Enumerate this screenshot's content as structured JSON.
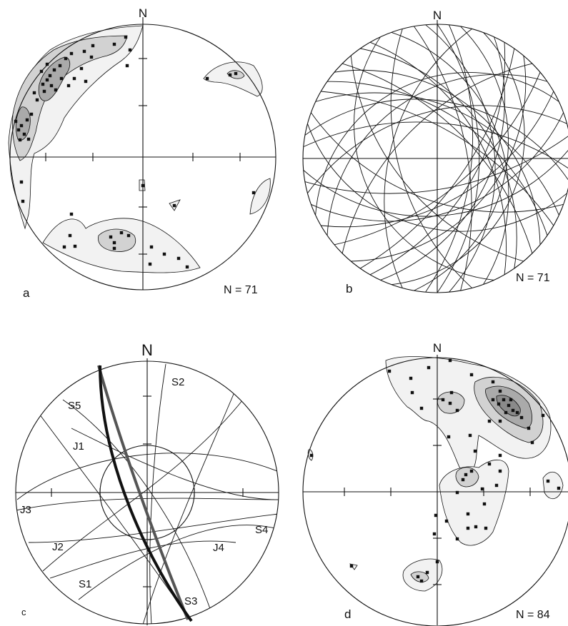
{
  "panels": [
    {
      "id": "a",
      "north": "N",
      "letter": "a",
      "count": "N = 71"
    },
    {
      "id": "b",
      "north": "N",
      "letter": "b",
      "count": "N = 71"
    },
    {
      "id": "c",
      "north": "N",
      "letter": "c",
      "count": ""
    },
    {
      "id": "d",
      "north": "N",
      "letter": "d",
      "count": "N = 84"
    }
  ],
  "plane_labels": [
    "S2",
    "S5",
    "J1",
    "J3",
    "S4",
    "J4",
    "J2",
    "S1",
    "S3"
  ],
  "colors": {
    "contour_light": "#f2f2f2",
    "contour_mid": "#d2d2d2",
    "contour_dark": "#aaaaaa",
    "ink": "#111111"
  }
}
